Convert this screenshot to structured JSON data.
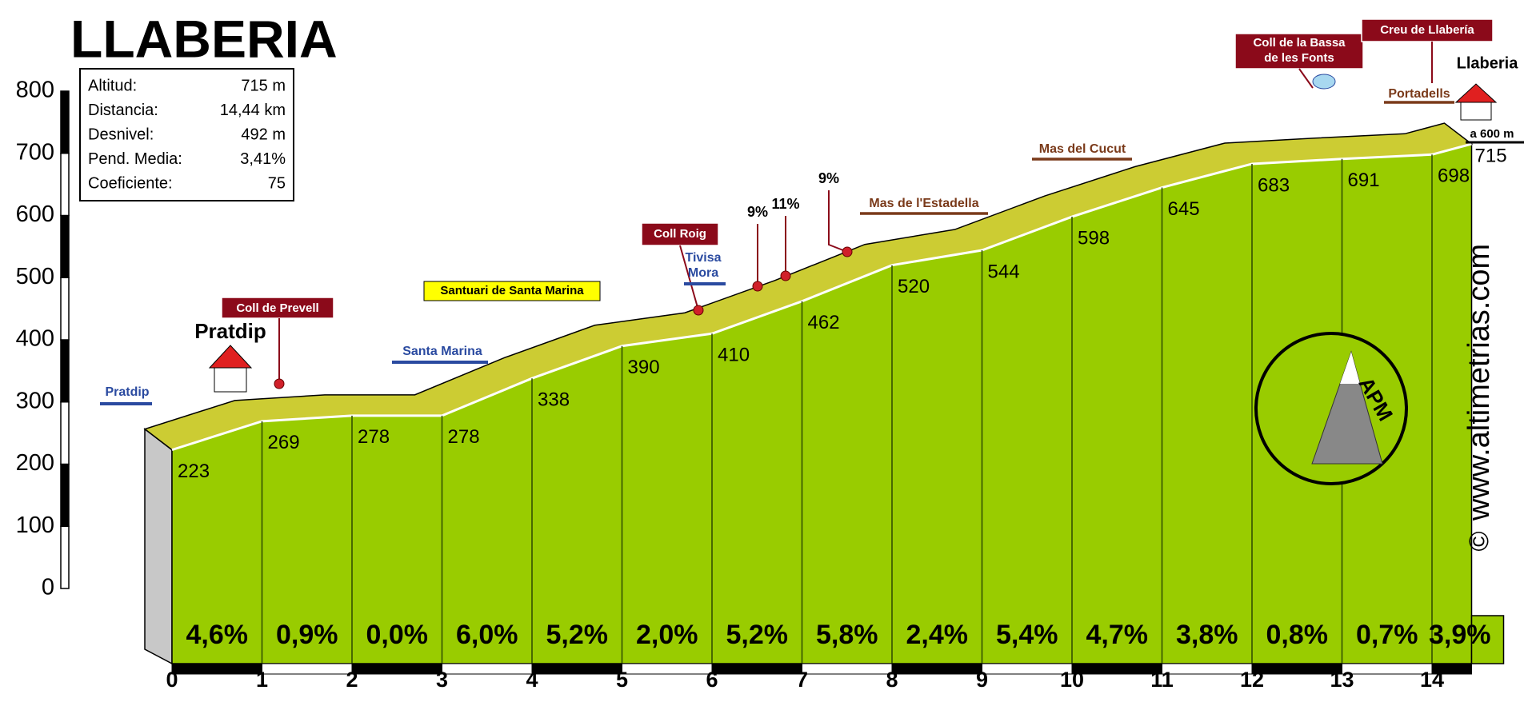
{
  "chart_data": {
    "type": "area",
    "title": "LLABERIA",
    "x": [
      0,
      1,
      2,
      3,
      4,
      5,
      6,
      7,
      8,
      9,
      10,
      11,
      12,
      13,
      14,
      14.44
    ],
    "values": [
      223,
      269,
      278,
      278,
      338,
      390,
      410,
      462,
      520,
      544,
      598,
      645,
      683,
      691,
      698,
      715
    ],
    "color": "#99cc00",
    "band_color": "#cccc33",
    "xlim": [
      0,
      14.44
    ],
    "xticks": [
      0,
      1,
      2,
      3,
      4,
      5,
      6,
      7,
      8,
      9,
      10,
      11,
      12,
      13,
      14
    ],
    "ylim": [
      0,
      800
    ],
    "yticks": [
      0,
      100,
      200,
      300,
      400,
      500,
      600,
      700,
      800
    ],
    "gradients": {
      "values": [
        4.6,
        0.9,
        0.0,
        6.0,
        5.2,
        2.0,
        5.2,
        5.8,
        2.4,
        5.4,
        4.7,
        3.8,
        0.8,
        0.7,
        3.9
      ],
      "value_labels": [
        "4,6%",
        "0,9%",
        "0,0%",
        "6,0%",
        "5,2%",
        "2,0%",
        "5,2%",
        "5,8%",
        "2,4%",
        "5,4%",
        "4,7%",
        "3,8%",
        "0,8%",
        "0,7%",
        "3,9%"
      ]
    },
    "info": [
      {
        "label": "Altitud:",
        "value": "715 m"
      },
      {
        "label": "Distancia:",
        "value": "14,44 km"
      },
      {
        "label": "Desnivel:",
        "value": "492 m"
      },
      {
        "label": "Pend. Media:",
        "value": "3,41%"
      },
      {
        "label": "Coeficiente:",
        "value": "75"
      }
    ],
    "annotations": [
      "Pratdip",
      "Pratdip",
      "Coll de Prevell",
      "Santa Marina",
      "Santuari de Santa Marina",
      "Coll Roig",
      "Tivisa",
      "Mora",
      "9%",
      "11%",
      "9%",
      "Mas de l'Estadella",
      "Mas del Cucut",
      "Coll de la Bassa",
      "de les Fonts",
      "Creu de Llabería",
      "Portadells",
      "Llaberia",
      "a 600 m",
      "APM",
      "www.altimetrias.com",
      "©"
    ]
  }
}
